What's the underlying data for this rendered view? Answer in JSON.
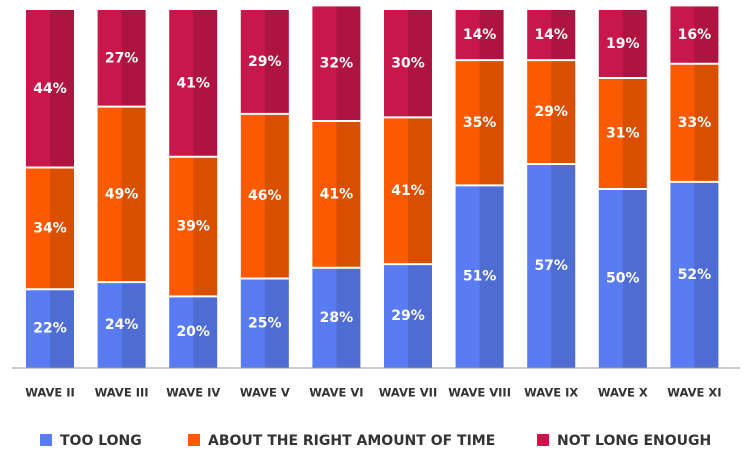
{
  "chart_data": {
    "type": "stacked_bar",
    "categories": [
      "WAVE II",
      "WAVE III",
      "WAVE IV",
      "WAVE V",
      "WAVE VI",
      "WAVE VII",
      "WAVE VIII",
      "WAVE IX",
      "WAVE X",
      "WAVE XI"
    ],
    "series": [
      {
        "name": "TOO LONG",
        "color": "#5a7cf2",
        "values": [
          22,
          24,
          20,
          25,
          28,
          29,
          51,
          57,
          50,
          52
        ],
        "value_labels": [
          "22%",
          "24%",
          "20%",
          "25%",
          "28%",
          "29%",
          "51%",
          "57%",
          "50%",
          "52%"
        ]
      },
      {
        "name": "ABOUT THE RIGHT AMOUNT OF TIME",
        "color": "#fb5a00",
        "values": [
          34,
          49,
          39,
          46,
          41,
          41,
          35,
          29,
          31,
          33
        ],
        "value_labels": [
          "34%",
          "49%",
          "39%",
          "46%",
          "41%",
          "41%",
          "35%",
          "29%",
          "31%",
          "33%"
        ]
      },
      {
        "name": "NOT LONG ENOUGH",
        "color": "#c8174a",
        "values": [
          44,
          27,
          41,
          29,
          32,
          30,
          14,
          14,
          19,
          16
        ],
        "value_labels": [
          "44%",
          "27%",
          "41%",
          "29%",
          "32%",
          "30%",
          "14%",
          "14%",
          "19%",
          "16%"
        ]
      }
    ],
    "ylim": [
      0,
      100
    ],
    "legend": "bottom"
  }
}
